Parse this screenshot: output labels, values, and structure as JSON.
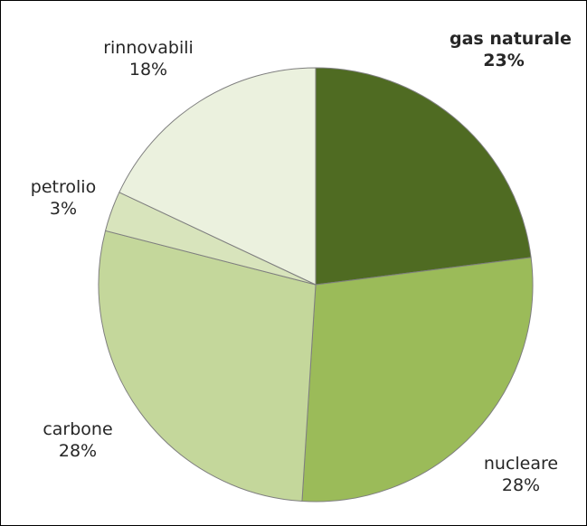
{
  "chart_data": {
    "type": "pie",
    "title": "",
    "slices": [
      {
        "label": "gas naturale",
        "value": 23,
        "value_label": "23%",
        "color": "#4f6b22",
        "bold": true
      },
      {
        "label": "nucleare",
        "value": 28,
        "value_label": "28%",
        "color": "#9bbb59",
        "bold": false
      },
      {
        "label": "carbone",
        "value": 28,
        "value_label": "28%",
        "color": "#c4d79b",
        "bold": false
      },
      {
        "label": "petrolio",
        "value": 3,
        "value_label": "3%",
        "color": "#d8e4bc",
        "bold": false
      },
      {
        "label": "rinnovabili",
        "value": 18,
        "value_label": "18%",
        "color": "#ebf1de",
        "bold": false
      }
    ],
    "start": "12 o'clock",
    "direction": "clockwise",
    "legend": "none"
  }
}
